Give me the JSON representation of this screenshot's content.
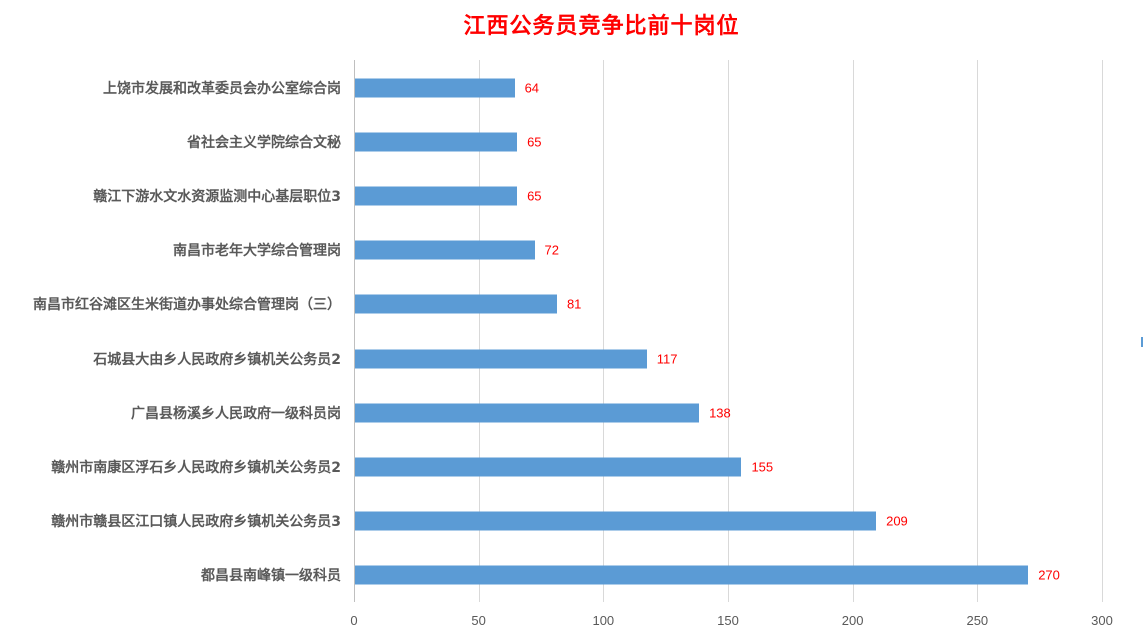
{
  "chart_data": {
    "type": "bar",
    "orientation": "horizontal",
    "title": "江西公务员竞争比前十岗位",
    "xlabel": "",
    "ylabel": "",
    "xlim": [
      0,
      300
    ],
    "xticks": [
      "0",
      "50",
      "100",
      "150",
      "200",
      "250",
      "300"
    ],
    "grid": true,
    "legend": null,
    "categories": [
      "上饶市发展和改革委员会办公室综合岗",
      "省社会主义学院综合文秘",
      "赣江下游水文水资源监测中心基层职位3",
      "南昌市老年大学综合管理岗",
      "南昌市红谷滩区生米街道办事处综合管理岗（三）",
      "石城县大由乡人民政府乡镇机关公务员2",
      "广昌县杨溪乡人民政府一级科员岗",
      "赣州市南康区浮石乡人民政府乡镇机关公务员2",
      "赣州市赣县区江口镇人民政府乡镇机关公务员3",
      "都昌县南峰镇一级科员"
    ],
    "values": [
      64,
      65,
      65,
      72,
      81,
      117,
      138,
      155,
      209,
      270
    ],
    "value_labels": [
      "64",
      "65",
      "65",
      "72",
      "81",
      "117",
      "138",
      "155",
      "209",
      "270"
    ],
    "colors": {
      "bar": "#5b9bd5",
      "data_label": "#ff0000",
      "title": "#ff0000",
      "category_label": "#595959",
      "grid": "#d9d9d9"
    }
  }
}
